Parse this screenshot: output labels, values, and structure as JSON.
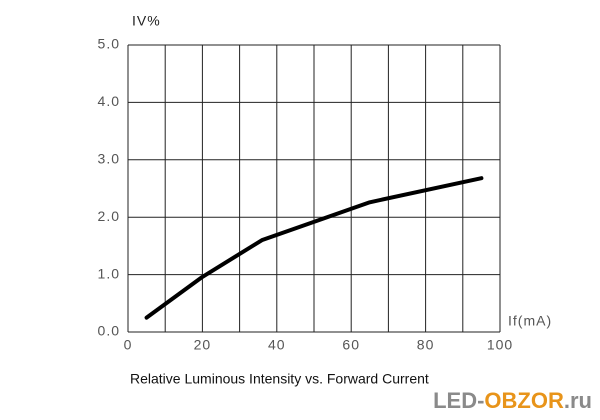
{
  "chart_data": {
    "type": "line",
    "title": "Relative Luminous Intensity vs. Forward Current",
    "y_label": "IV%",
    "x_label": "If(mA)",
    "watermark": {
      "parts": [
        "LED-",
        "OBZOR",
        ".ru"
      ],
      "colors": [
        "#8a8a8a",
        "#e8941a",
        "#8a8a8a"
      ]
    },
    "x": [
      5,
      20,
      36,
      65,
      95
    ],
    "series": [
      {
        "name": "Relative luminous intensity",
        "color": "#000000",
        "values": [
          0.25,
          0.96,
          1.6,
          2.26,
          2.68
        ]
      }
    ],
    "xlim": [
      0,
      100
    ],
    "xticks": [
      0,
      20,
      40,
      60,
      80,
      100
    ],
    "ylim": [
      0,
      5
    ],
    "yticks": [
      {
        "value": 0,
        "label": "0.0"
      },
      {
        "value": 1,
        "label": "1.0"
      },
      {
        "value": 2,
        "label": "2.0"
      },
      {
        "value": 3,
        "label": "3.0"
      },
      {
        "value": 4,
        "label": "4.0"
      },
      {
        "value": 5,
        "label": "5.0"
      }
    ],
    "grid": true
  }
}
